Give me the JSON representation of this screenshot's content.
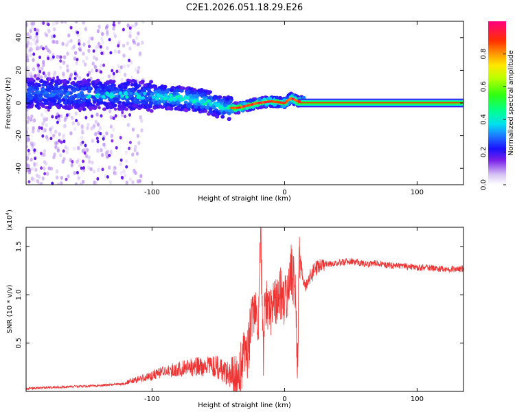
{
  "title": "C2E1.2026.051.18.29.E26",
  "chart_data": [
    {
      "type": "heatmap",
      "name": "spectrogram",
      "xlabel": "Height of straight line (km)",
      "ylabel": "Frequency (Hz)",
      "xlim": [
        -195,
        135
      ],
      "ylim": [
        -50,
        50
      ],
      "xticks": [
        -100,
        0,
        100
      ],
      "yticks": [
        -40,
        -20,
        0,
        20,
        40
      ],
      "ridge": {
        "description_points_x": [
          -190,
          -150,
          -120,
          -100,
          -80,
          -60,
          -45,
          -35,
          -20,
          -10,
          0,
          5,
          10,
          135
        ],
        "description_points_y": [
          6,
          5,
          5,
          4,
          3,
          1,
          -3,
          -3,
          0,
          1,
          0,
          3,
          1,
          0
        ]
      },
      "colorbar": {
        "label": "Normalized spectral amplitude",
        "range": [
          0,
          1
        ],
        "ticks": [
          0.0,
          0.2,
          0.4,
          0.6,
          0.8
        ],
        "tick_labels": [
          "0.0",
          "0.2",
          "0.4",
          "0.6",
          "0.8"
        ]
      }
    },
    {
      "type": "line",
      "name": "snr",
      "xlabel": "Height of straight line (km)",
      "ylabel": "SNR (10 * v/v)",
      "scale_label": "(x10",
      "scale_exp": "4",
      "scale_close": ")",
      "xlim": [
        -195,
        135
      ],
      "ylim": [
        0,
        1.7
      ],
      "xticks": [
        -100,
        0,
        100
      ],
      "yticks": [
        0.5,
        1.0,
        1.5
      ],
      "ytick_labels": [
        "0.5",
        "1.0",
        "1.5"
      ],
      "color": "#ee3333",
      "series": [
        {
          "name": "SNR",
          "x": [
            -195,
            -180,
            -160,
            -140,
            -120,
            -110,
            -100,
            -90,
            -80,
            -70,
            -60,
            -50,
            -45,
            -40,
            -35,
            -30,
            -28,
            -25,
            -22,
            -20,
            -18,
            -16,
            -15,
            -13,
            -10,
            -7,
            -5,
            -2,
            0,
            2,
            5,
            8,
            10,
            11,
            13,
            15,
            20,
            25,
            30,
            40,
            50,
            60,
            70,
            80,
            90,
            100,
            110,
            120,
            135
          ],
          "y": [
            0.03,
            0.04,
            0.05,
            0.06,
            0.08,
            0.11,
            0.14,
            0.18,
            0.2,
            0.21,
            0.22,
            0.2,
            0.15,
            0.08,
            0.12,
            0.45,
            0.4,
            0.7,
            0.9,
            0.5,
            1.7,
            0.3,
            1.0,
            0.9,
            0.85,
            0.9,
            1.05,
            1.0,
            0.95,
            1.05,
            1.25,
            1.1,
            0.18,
            1.5,
            1.25,
            1.1,
            1.2,
            1.3,
            1.32,
            1.33,
            1.35,
            1.32,
            1.33,
            1.3,
            1.3,
            1.28,
            1.28,
            1.27,
            1.27
          ]
        }
      ]
    }
  ]
}
